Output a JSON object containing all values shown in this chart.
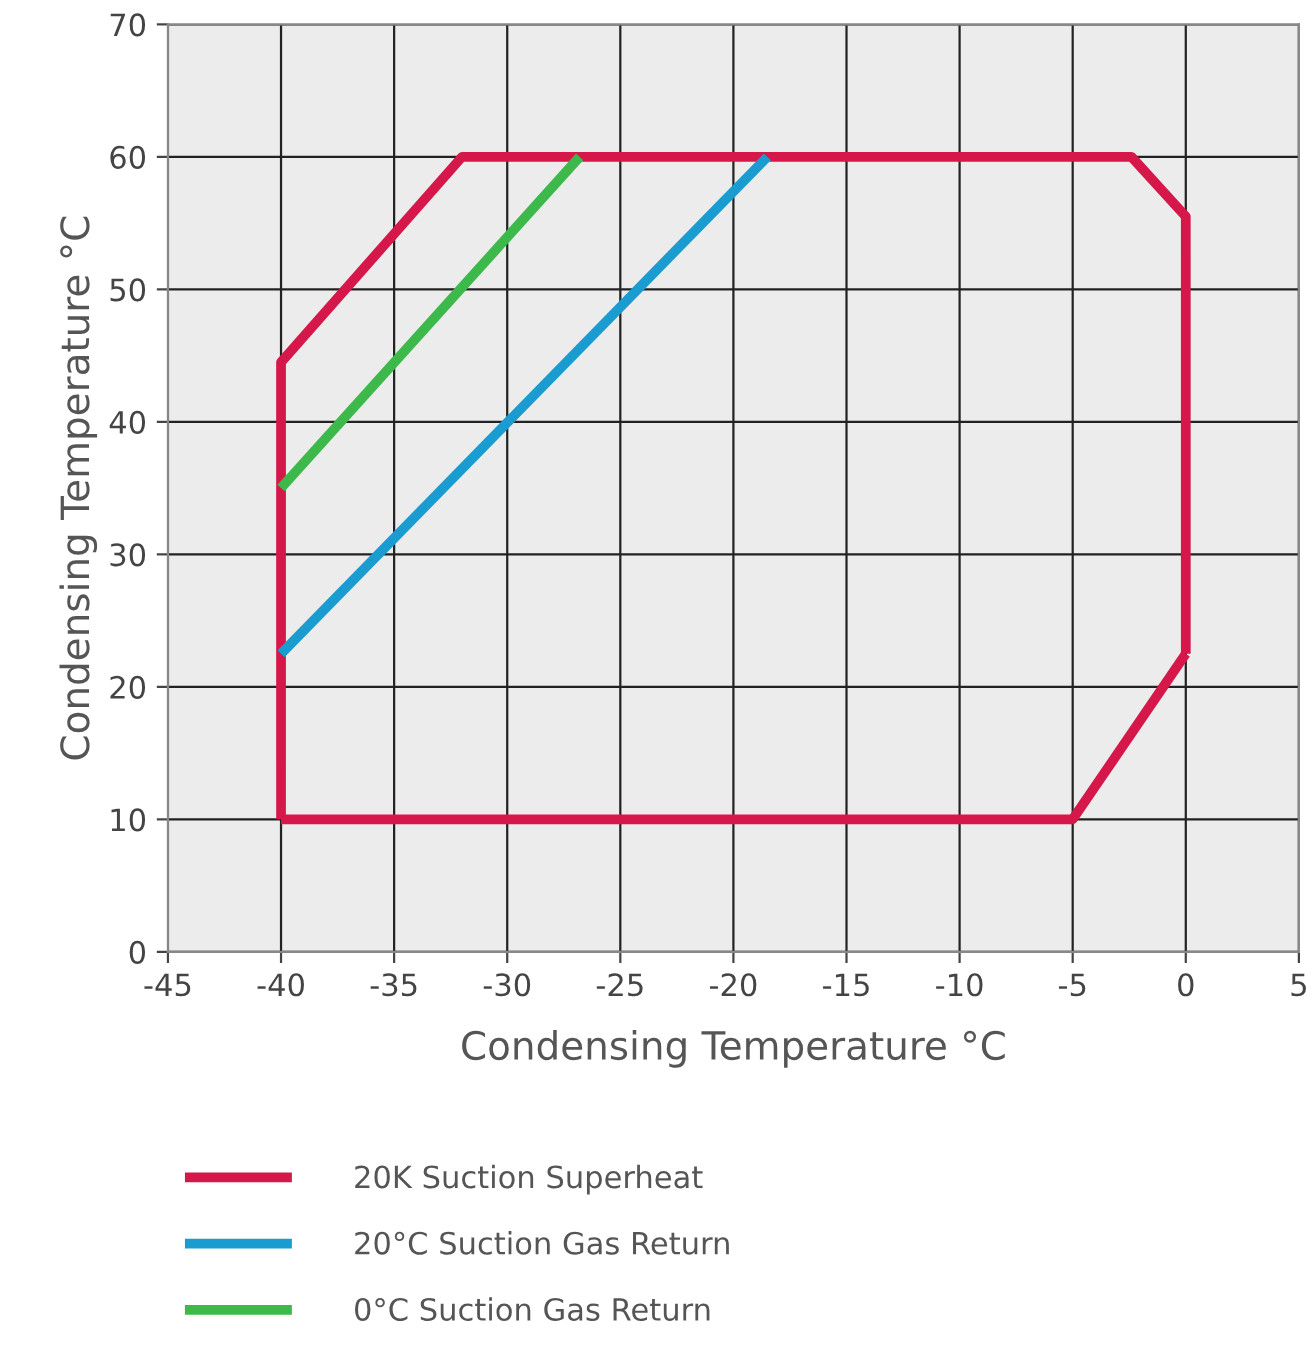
{
  "chart_data": {
    "type": "line",
    "xlabel": "Condensing Temperature °C",
    "ylabel": "Condensing Temperature °C",
    "xlim": [
      -45,
      5
    ],
    "xticks": [
      -45,
      -40,
      -35,
      -30,
      -25,
      -20,
      -15,
      -10,
      -5,
      0,
      5
    ],
    "ylim": [
      0,
      70
    ],
    "yticks": [
      0,
      10,
      20,
      30,
      40,
      50,
      60,
      70
    ],
    "grid": true,
    "legend": "bottom",
    "marker": "none",
    "line_style": "solid",
    "series": [
      {
        "name": "20K Suction Superheat",
        "color": "#d6174a",
        "x": [
          -40,
          -40,
          -32,
          -2.4,
          0,
          0
        ],
        "values": [
          10,
          44.5,
          60,
          60,
          55.5,
          22.5
        ]
      },
      {
        "color": "#d6174a",
        "x": [
          -40,
          -5,
          0
        ],
        "values": [
          10,
          10,
          22.5
        ]
      },
      {
        "name": "20°C Suction Gas Return",
        "color": "#1a9cd0",
        "x": [
          -40,
          -18.5
        ],
        "values": [
          22.5,
          60
        ]
      },
      {
        "name": "0°C Suction Gas Return",
        "color": "#3cb94a",
        "x": [
          -40,
          -26.8
        ],
        "values": [
          35,
          60
        ]
      }
    ]
  }
}
